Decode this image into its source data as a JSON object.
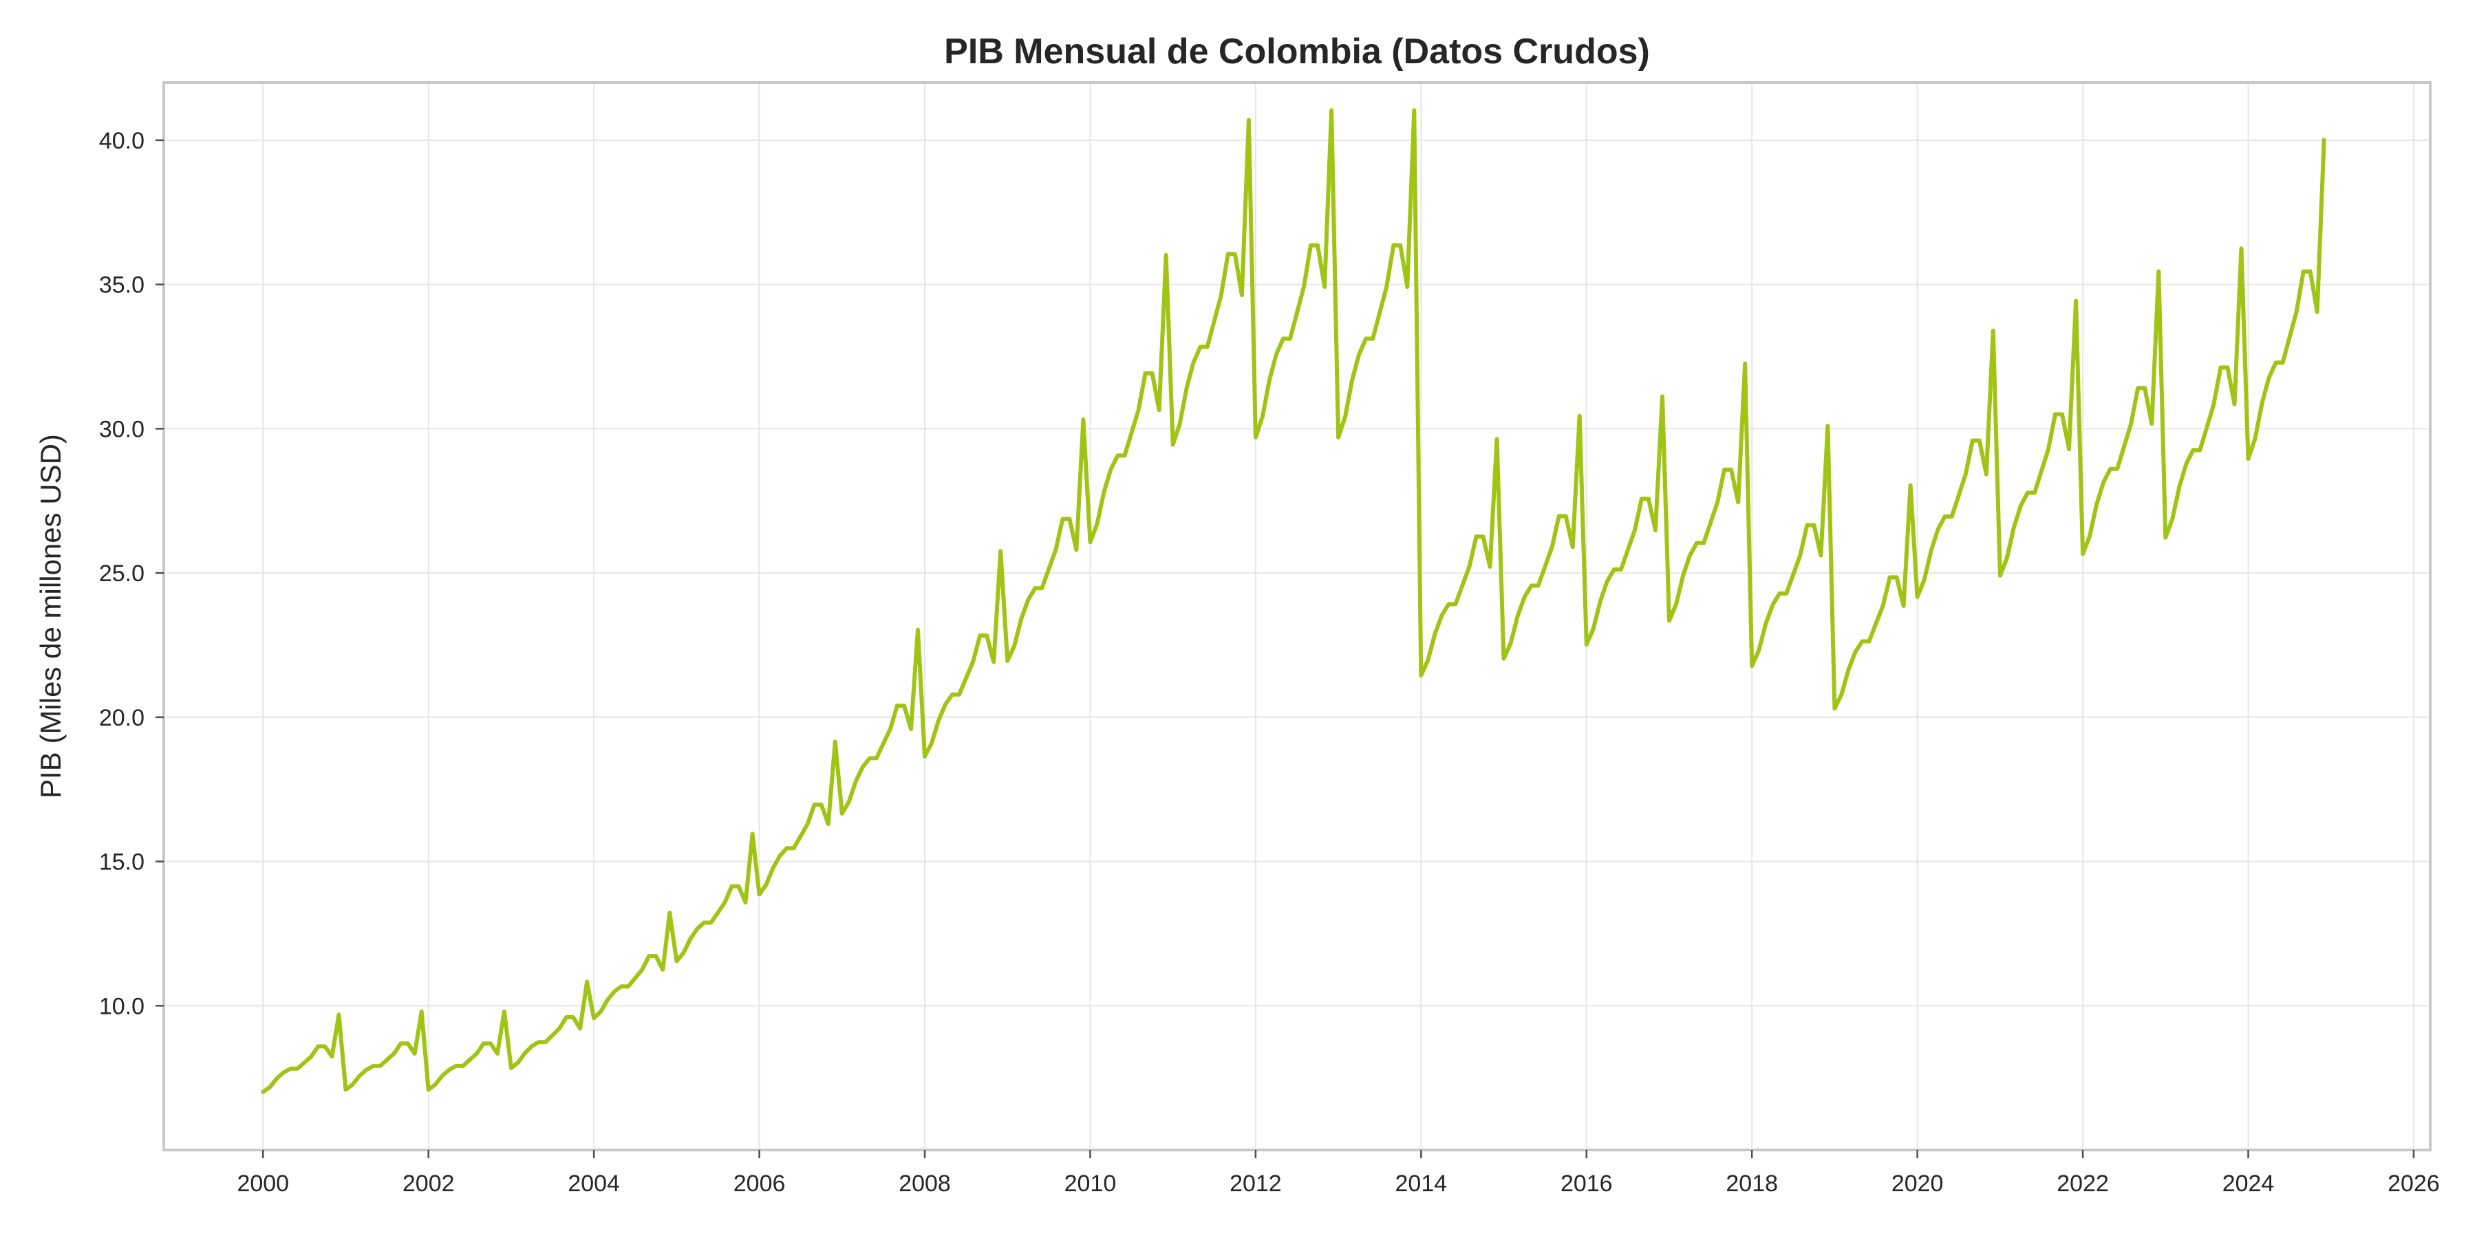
{
  "chart_data": {
    "type": "line",
    "title": "PIB Mensual de Colombia (Datos Crudos)",
    "xlabel": "",
    "ylabel": "PIB (Miles de millones USD)",
    "xlim": [
      1998.8,
      2026.2
    ],
    "ylim": [
      5.0,
      42.0
    ],
    "x_ticks": [
      2000,
      2002,
      2004,
      2006,
      2008,
      2010,
      2012,
      2014,
      2016,
      2018,
      2020,
      2022,
      2024,
      2026
    ],
    "x_tick_labels": [
      "2000",
      "2002",
      "2004",
      "2006",
      "2008",
      "2010",
      "2012",
      "2014",
      "2016",
      "2018",
      "2020",
      "2022",
      "2024",
      "2026"
    ],
    "y_ticks": [
      10.0,
      15.0,
      20.0,
      25.0,
      30.0,
      35.0,
      40.0
    ],
    "y_tick_labels": [
      "10.0",
      "15.0",
      "20.0",
      "25.0",
      "30.0",
      "35.0",
      "40.0"
    ],
    "grid": true,
    "legend": "none",
    "line_color": "#a0c414",
    "series": [
      {
        "x_start": "2000-01",
        "x_end": "2024-12",
        "frequency": "monthly",
        "annual_base": [
          8.5,
          8.6,
          8.6,
          9.5,
          11.6,
          14.0,
          16.8,
          20.2,
          22.6,
          26.6,
          31.6,
          35.7,
          36.0,
          36.0,
          26.0,
          26.7,
          27.3,
          28.3,
          26.4,
          24.6,
          29.3,
          30.2,
          31.1,
          31.8,
          35.1
        ],
        "monthly_factors": [
          0.825,
          0.845,
          0.88,
          0.905,
          0.92,
          0.92,
          0.945,
          0.97,
          1.01,
          1.01,
          0.97,
          1.14
        ],
        "note_dec": "December spikes",
        "values": []
      }
    ]
  }
}
